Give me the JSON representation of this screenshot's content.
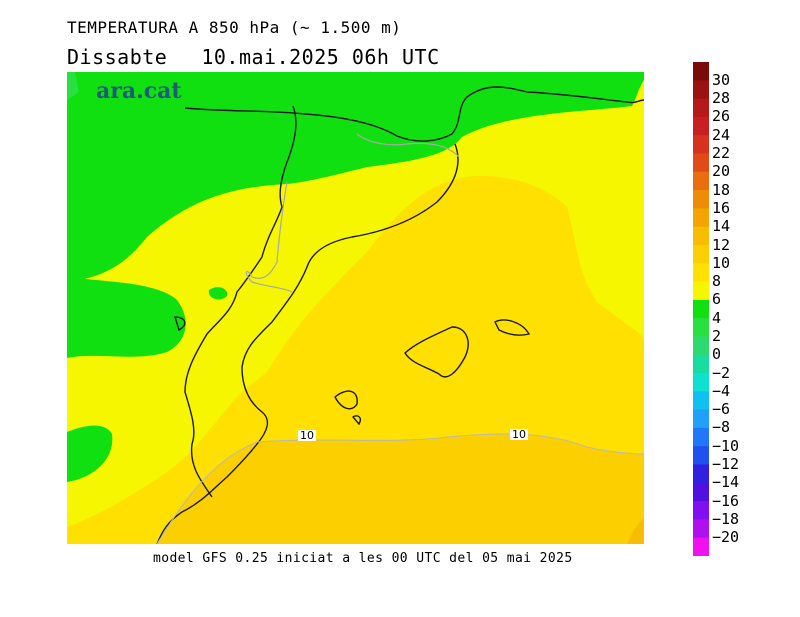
{
  "header": {
    "title": "TEMPERATURA A 850 hPa (~ 1.500 m)",
    "day": "Dissabte",
    "datetime": "10.mai.2025 06h UTC"
  },
  "brand": "ara.cat",
  "footer": "model GFS 0.25 iniciat a les 00 UTC del 05 mai 2025",
  "map": {
    "isolines": [
      {
        "label": "10"
      },
      {
        "label": "10"
      }
    ]
  },
  "scale": {
    "labels": [
      "30",
      "28",
      "26",
      "24",
      "22",
      "20",
      "18",
      "16",
      "14",
      "12",
      "10",
      "8",
      "6",
      "4",
      "2",
      "0",
      "−2",
      "−4",
      "−6",
      "−8",
      "−10",
      "−12",
      "−14",
      "−16",
      "−18",
      "−20"
    ],
    "colors": [
      "#7b0a0a",
      "#9a1212",
      "#b41a1a",
      "#c82020",
      "#d8321e",
      "#e24a18",
      "#e86e10",
      "#ee8c08",
      "#f4a400",
      "#f8bc00",
      "#fcd000",
      "#ffe000",
      "#f6f600",
      "#10e010",
      "#28e040",
      "#30d870",
      "#18dca0",
      "#10e0d0",
      "#10c0f0",
      "#20a0f8",
      "#2078f8",
      "#2050f0",
      "#3020e0",
      "#5010e0",
      "#8010f0",
      "#b010f0",
      "#f010f0"
    ]
  }
}
